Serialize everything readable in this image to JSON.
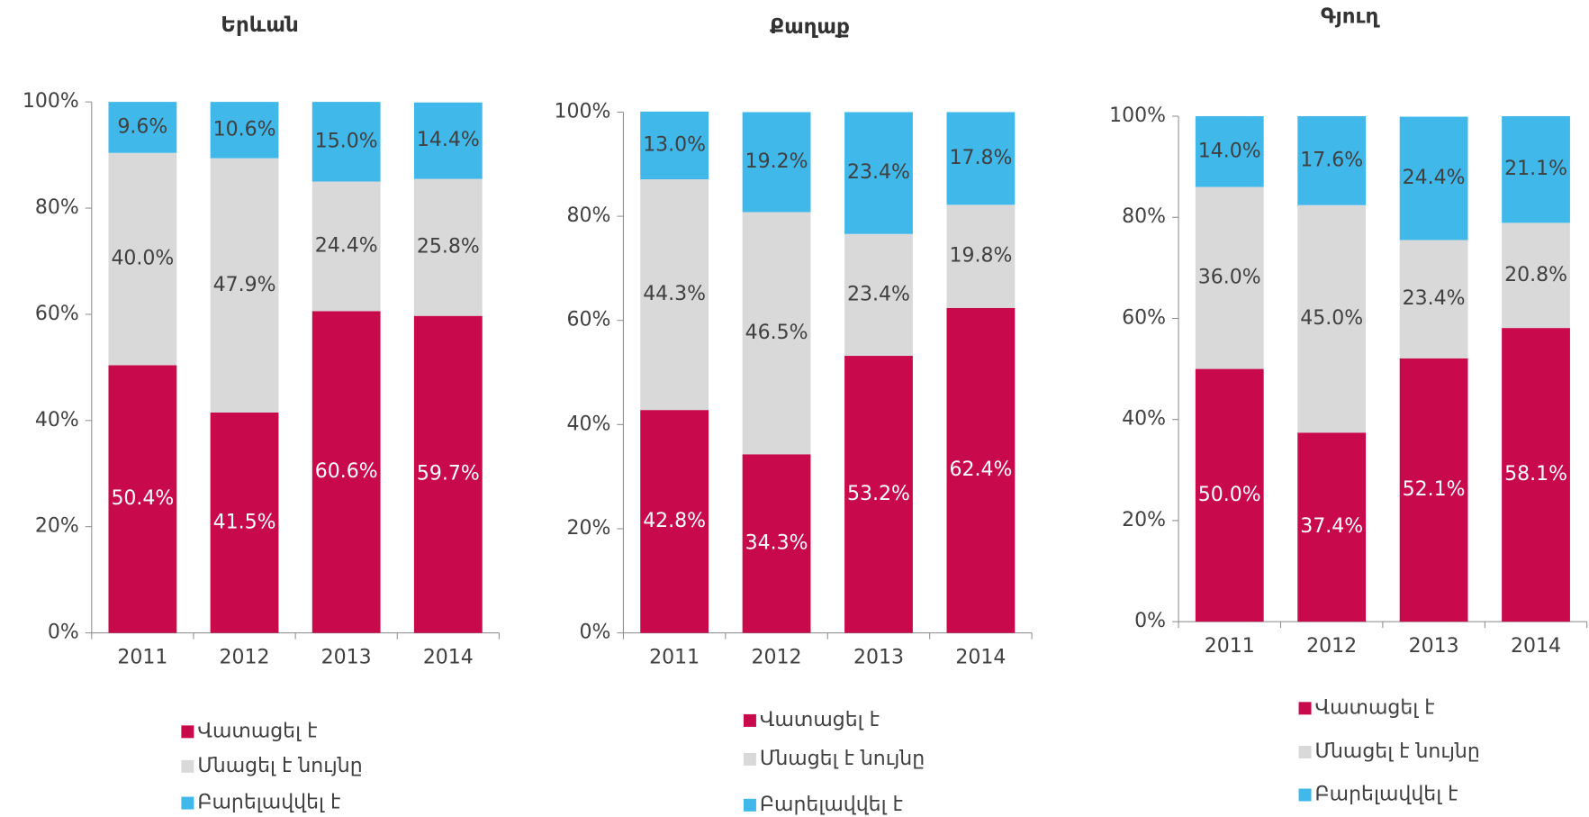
{
  "chart_data": [
    {
      "type": "bar",
      "stacked": true,
      "title": "Երևան",
      "categories": [
        "2011",
        "2012",
        "2013",
        "2014"
      ],
      "series": [
        {
          "name": "Վատացել է",
          "color": "#c8094c",
          "values": [
            50.4,
            41.5,
            60.6,
            59.7
          ],
          "value_labels": [
            "50.4%",
            "41.5%",
            "60.6%",
            "59.7%"
          ]
        },
        {
          "name": "Մնացել է նույնը",
          "color": "#d9d9d9",
          "values": [
            40.0,
            47.9,
            24.4,
            25.8
          ],
          "value_labels": [
            "40.0%",
            "47.9%",
            "24.4%",
            "25.8%"
          ]
        },
        {
          "name": "Բարելավվել է",
          "color": "#41b8ea",
          "values": [
            9.6,
            10.6,
            15.0,
            14.4
          ],
          "value_labels": [
            "9.6%",
            "10.6%",
            "15.0%",
            "14.4%"
          ]
        }
      ],
      "ylim": [
        0,
        100
      ],
      "yticks": [
        {
          "value": 0,
          "label": "0%"
        },
        {
          "value": 20,
          "label": "20%"
        },
        {
          "value": 40,
          "label": "40%"
        },
        {
          "value": 60,
          "label": "60%"
        },
        {
          "value": 80,
          "label": "80%"
        },
        {
          "value": 100,
          "label": "100%"
        }
      ]
    },
    {
      "type": "bar",
      "stacked": true,
      "title": "Քաղաք",
      "categories": [
        "2011",
        "2012",
        "2013",
        "2014"
      ],
      "series": [
        {
          "name": "Վատացել է",
          "color": "#c8094c",
          "values": [
            42.8,
            34.3,
            53.2,
            62.4
          ],
          "value_labels": [
            "42.8%",
            "34.3%",
            "53.2%",
            "62.4%"
          ]
        },
        {
          "name": "Մնացել է նույնը",
          "color": "#d9d9d9",
          "values": [
            44.3,
            46.5,
            23.4,
            19.8
          ],
          "value_labels": [
            "44.3%",
            "46.5%",
            "23.4%",
            "19.8%"
          ]
        },
        {
          "name": "Բարելավվել է",
          "color": "#41b8ea",
          "values": [
            13.0,
            19.2,
            23.4,
            17.8
          ],
          "value_labels": [
            "13.0%",
            "19.2%",
            "23.4%",
            "17.8%"
          ]
        }
      ],
      "ylim": [
        0,
        100
      ],
      "yticks": [
        {
          "value": 0,
          "label": "0%"
        },
        {
          "value": 20,
          "label": "20%"
        },
        {
          "value": 40,
          "label": "40%"
        },
        {
          "value": 60,
          "label": "60%"
        },
        {
          "value": 80,
          "label": "80%"
        },
        {
          "value": 100,
          "label": "100%"
        }
      ]
    },
    {
      "type": "bar",
      "stacked": true,
      "title": "Գյուղ",
      "categories": [
        "2011",
        "2012",
        "2013",
        "2014"
      ],
      "series": [
        {
          "name": "Վատացել է",
          "color": "#c8094c",
          "values": [
            50.0,
            37.4,
            52.1,
            58.1
          ],
          "value_labels": [
            "50.0%",
            "37.4%",
            "52.1%",
            "58.1%"
          ]
        },
        {
          "name": "Մնացել է նույնը",
          "color": "#d9d9d9",
          "values": [
            36.0,
            45.0,
            23.4,
            20.8
          ],
          "value_labels": [
            "36.0%",
            "45.0%",
            "23.4%",
            "20.8%"
          ]
        },
        {
          "name": "Բարելավվել է",
          "color": "#41b8ea",
          "values": [
            14.0,
            17.6,
            24.4,
            21.1
          ],
          "value_labels": [
            "14.0%",
            "17.6%",
            "24.4%",
            "21.1%"
          ]
        }
      ],
      "ylim": [
        0,
        100
      ],
      "yticks": [
        {
          "value": 0,
          "label": "0%"
        },
        {
          "value": 20,
          "label": "20%"
        },
        {
          "value": 40,
          "label": "40%"
        },
        {
          "value": 60,
          "label": "60%"
        },
        {
          "value": 80,
          "label": "80%"
        },
        {
          "value": 100,
          "label": "100%"
        }
      ]
    }
  ]
}
